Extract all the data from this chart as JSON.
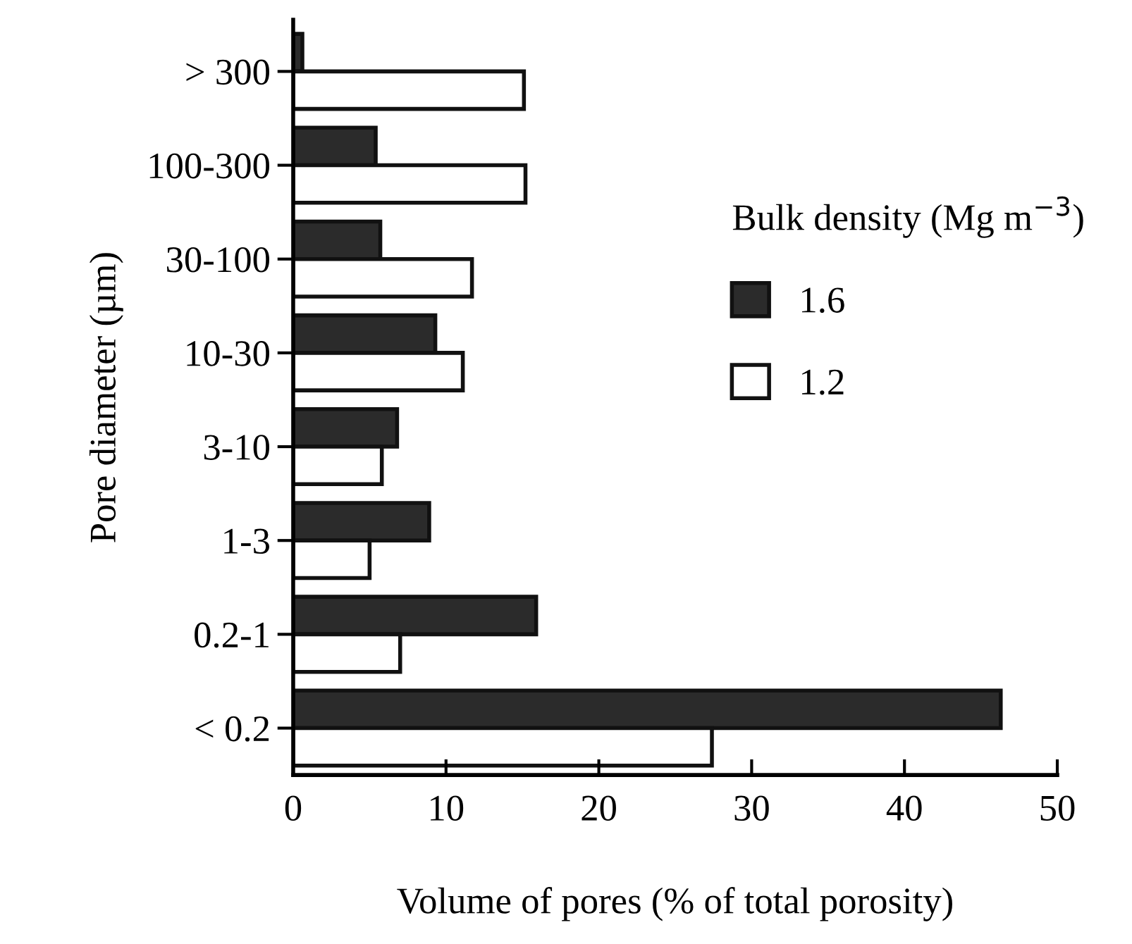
{
  "chart_data": {
    "type": "bar",
    "orientation": "horizontal",
    "xlabel": "Volume of pores (% of total porosity)",
    "ylabel": "Pore diameter (µm)",
    "legend_title": "Bulk density (Mg m$^{−3}$)",
    "categories": [
      "> 300",
      "100-300",
      "30-100",
      "10-30",
      "3-10",
      "1-3",
      "0.2-1",
      "< 0.2"
    ],
    "series": [
      {
        "name": "1.6",
        "color": "#2b2b2b",
        "values": [
          0.6,
          5.4,
          5.7,
          9.3,
          6.8,
          8.9,
          15.9,
          46.3
        ]
      },
      {
        "name": "1.2",
        "color": "#ffffff",
        "values": [
          15.1,
          15.2,
          11.7,
          11.1,
          5.8,
          5.0,
          7.0,
          27.4
        ]
      }
    ],
    "xlim": [
      0,
      50
    ],
    "xticks": [
      0,
      10,
      20,
      30,
      40,
      50
    ],
    "grid": false,
    "legend": "right"
  }
}
